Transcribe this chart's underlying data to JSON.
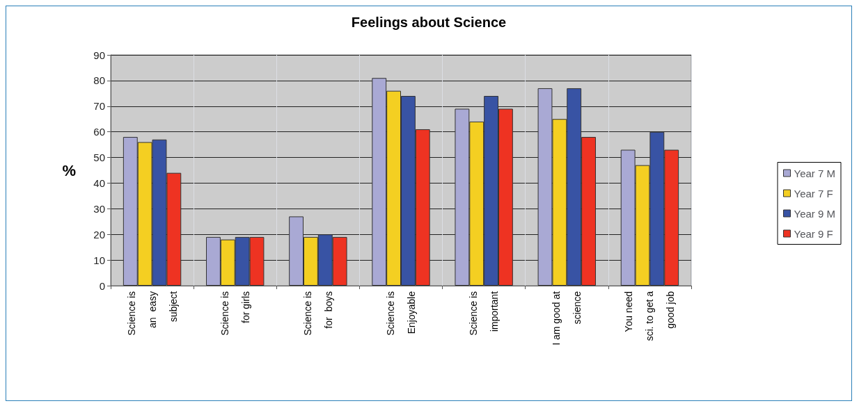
{
  "chart_data": {
    "type": "bar",
    "title": "Feelings about Science",
    "ylabel": "%",
    "categories": [
      "Science is\nan  easy\nsubject",
      "Science is\nfor girls",
      "Science is\nfor  boys",
      "Science is\nEnjoyable",
      "Science is\nimportant",
      "I am good at\nscience",
      "You need\nsci. to get a\ngood job"
    ],
    "series": [
      {
        "name": "Year 7 M",
        "color": "#a9a9d4",
        "values": [
          58,
          19,
          27,
          81,
          69,
          77,
          53
        ]
      },
      {
        "name": "Year 7 F",
        "color": "#f4cf22",
        "values": [
          56,
          18,
          19,
          76,
          64,
          65,
          47
        ]
      },
      {
        "name": "Year 9 M",
        "color": "#3853a4",
        "values": [
          57,
          19,
          20,
          74,
          74,
          77,
          60
        ]
      },
      {
        "name": "Year 9 F",
        "color": "#ee3322",
        "values": [
          44,
          19,
          19,
          61,
          69,
          58,
          53
        ]
      }
    ],
    "ylim": [
      0,
      90
    ],
    "yticks": [
      0,
      10,
      20,
      30,
      40,
      50,
      60,
      70,
      80,
      90
    ],
    "grid": true,
    "legend": "right"
  }
}
